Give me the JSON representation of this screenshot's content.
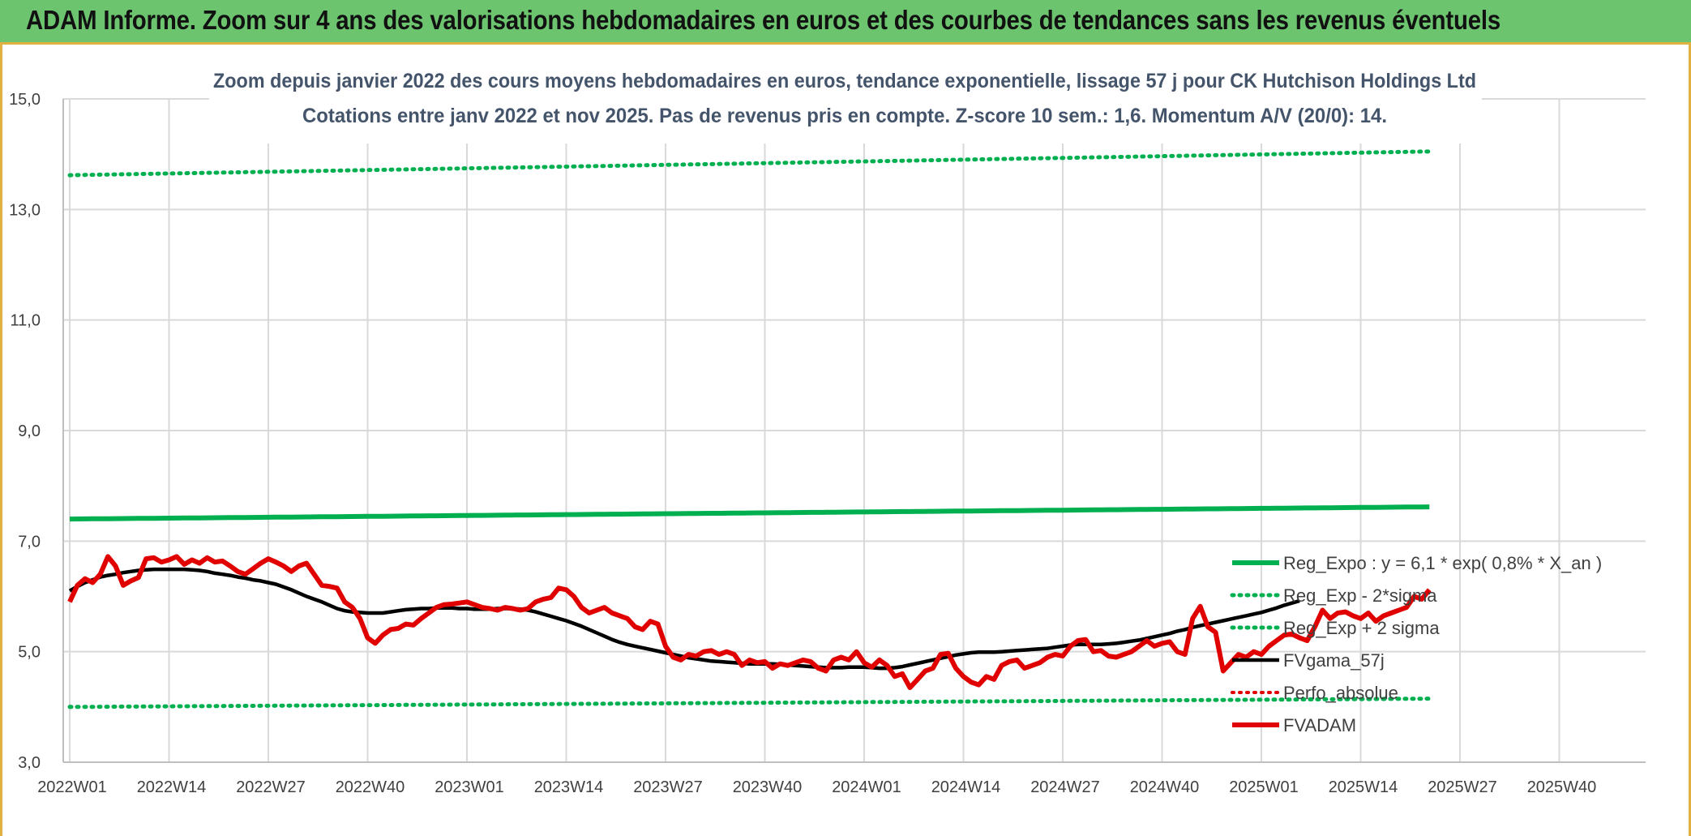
{
  "banner": {
    "title": "ADAM Informe. Zoom sur 4 ans des valorisations hebdomadaires en euros et des courbes de tendances sans les revenus éventuels"
  },
  "colors": {
    "banner_bg": "#6cc46f",
    "trend_green": "#00b050",
    "smooth_black": "#000000",
    "price_red": "#e00000",
    "grid": "#d9d9d9",
    "text": "#404040"
  },
  "chart_data": {
    "type": "line",
    "title_line1": "Zoom depuis janvier 2022 des cours moyens hebdomadaires en euros, tendance exponentielle, lissage 57 j pour CK Hutchison Holdings Ltd",
    "title_line2": "Cotations entre janv 2022 et nov 2025. Pas de revenus pris en compte. Z-score 10 sem.: 1,6. Momentum A/V (20/0): 14.",
    "ylim": [
      3.0,
      15.0
    ],
    "y_ticks": [
      "3,0",
      "5,0",
      "7,0",
      "9,0",
      "11,0",
      "13,0",
      "15,0"
    ],
    "x_ticks": [
      "2022W01",
      "2022W14",
      "2022W27",
      "2022W40",
      "2023W01",
      "2023W14",
      "2023W27",
      "2023W40",
      "2024W01",
      "2024W14",
      "2024W27",
      "2024W40",
      "2025W01",
      "2025W14",
      "2025W27",
      "2025W40"
    ],
    "grid": true,
    "legend_position": "bottom-right inside plot",
    "series": [
      {
        "name": "Reg_Expo : y = 6,1 * exp( 0,8% *  X_an )",
        "style": "solid-thick",
        "color": "#00b050",
        "start": 7.4,
        "end": 7.62
      },
      {
        "name": "Reg_Exp - 2*sigma",
        "style": "dotted",
        "color": "#00b050",
        "start": 4.0,
        "end": 4.15
      },
      {
        "name": "Reg_Exp + 2 sigma",
        "style": "dotted",
        "color": "#00b050",
        "start": 13.62,
        "end": 14.05
      },
      {
        "name": "FVgama_57j",
        "style": "solid",
        "color": "#000000",
        "values": [
          6.1,
          6.18,
          6.25,
          6.3,
          6.35,
          6.38,
          6.4,
          6.43,
          6.45,
          6.47,
          6.48,
          6.49,
          6.49,
          6.49,
          6.49,
          6.49,
          6.48,
          6.47,
          6.45,
          6.42,
          6.4,
          6.38,
          6.35,
          6.33,
          6.3,
          6.28,
          6.25,
          6.22,
          6.17,
          6.12,
          6.06,
          6.0,
          5.95,
          5.9,
          5.84,
          5.78,
          5.74,
          5.72,
          5.71,
          5.7,
          5.7,
          5.7,
          5.72,
          5.74,
          5.76,
          5.77,
          5.78,
          5.78,
          5.79,
          5.79,
          5.79,
          5.78,
          5.78,
          5.77,
          5.77,
          5.77,
          5.78,
          5.78,
          5.78,
          5.77,
          5.75,
          5.72,
          5.68,
          5.64,
          5.6,
          5.56,
          5.51,
          5.46,
          5.4,
          5.34,
          5.28,
          5.22,
          5.17,
          5.13,
          5.1,
          5.07,
          5.04,
          5.01,
          4.98,
          4.95,
          4.92,
          4.89,
          4.87,
          4.85,
          4.83,
          4.82,
          4.81,
          4.8,
          4.79,
          4.78,
          4.78,
          4.78,
          4.78,
          4.77,
          4.76,
          4.75,
          4.74,
          4.73,
          4.72,
          4.71,
          4.71,
          4.71,
          4.72,
          4.72,
          4.72,
          4.71,
          4.7,
          4.7,
          4.71,
          4.73,
          4.76,
          4.79,
          4.82,
          4.85,
          4.88,
          4.91,
          4.94,
          4.96,
          4.98,
          4.99,
          4.99,
          4.99,
          5.0,
          5.01,
          5.02,
          5.03,
          5.04,
          5.05,
          5.06,
          5.08,
          5.1,
          5.12,
          5.13,
          5.13,
          5.13,
          5.13,
          5.14,
          5.15,
          5.17,
          5.19,
          5.21,
          5.24,
          5.27,
          5.3,
          5.33,
          5.37,
          5.4,
          5.44,
          5.47,
          5.5,
          5.53,
          5.56,
          5.59,
          5.62,
          5.65,
          5.68,
          5.71,
          5.75,
          5.79,
          5.84,
          5.88,
          5.92
        ]
      },
      {
        "name": "Perfo_absolue",
        "style": "dotted",
        "color": "#e00000",
        "values": []
      },
      {
        "name": "FVADAM",
        "style": "solid-thick",
        "color": "#e00000",
        "values": [
          5.9,
          6.2,
          6.32,
          6.25,
          6.4,
          6.72,
          6.55,
          6.2,
          6.28,
          6.34,
          6.68,
          6.7,
          6.62,
          6.66,
          6.72,
          6.58,
          6.66,
          6.6,
          6.7,
          6.62,
          6.64,
          6.55,
          6.45,
          6.4,
          6.5,
          6.6,
          6.68,
          6.62,
          6.55,
          6.45,
          6.55,
          6.6,
          6.4,
          6.2,
          6.18,
          6.15,
          5.9,
          5.8,
          5.6,
          5.25,
          5.15,
          5.3,
          5.4,
          5.42,
          5.5,
          5.48,
          5.6,
          5.7,
          5.8,
          5.85,
          5.86,
          5.88,
          5.9,
          5.85,
          5.8,
          5.78,
          5.75,
          5.8,
          5.78,
          5.75,
          5.78,
          5.9,
          5.95,
          5.98,
          6.15,
          6.12,
          6.0,
          5.8,
          5.7,
          5.75,
          5.8,
          5.7,
          5.65,
          5.6,
          5.45,
          5.4,
          5.55,
          5.5,
          5.1,
          4.9,
          4.85,
          4.95,
          4.92,
          5.0,
          5.02,
          4.95,
          5.0,
          4.95,
          4.75,
          4.85,
          4.8,
          4.82,
          4.7,
          4.78,
          4.75,
          4.8,
          4.85,
          4.82,
          4.7,
          4.65,
          4.85,
          4.9,
          4.85,
          5.0,
          4.8,
          4.72,
          4.85,
          4.75,
          4.55,
          4.6,
          4.35,
          4.5,
          4.65,
          4.7,
          4.95,
          4.97,
          4.7,
          4.55,
          4.45,
          4.4,
          4.55,
          4.5,
          4.75,
          4.82,
          4.85,
          4.7,
          4.75,
          4.8,
          4.9,
          4.95,
          4.92,
          5.1,
          5.2,
          5.22,
          5.0,
          5.02,
          4.92,
          4.9,
          4.95,
          5.0,
          5.1,
          5.2,
          5.1,
          5.15,
          5.18,
          5.0,
          4.95,
          5.6,
          5.82,
          5.45,
          5.35,
          4.65,
          4.8,
          4.95,
          4.9,
          5.0,
          4.95,
          5.1,
          5.2,
          5.3,
          5.32,
          5.25,
          5.2,
          5.45,
          5.75,
          5.6,
          5.7,
          5.72,
          5.65,
          5.6,
          5.7,
          5.55,
          5.65,
          5.7,
          5.75,
          5.8,
          6.0,
          5.95,
          6.12
        ]
      }
    ]
  }
}
